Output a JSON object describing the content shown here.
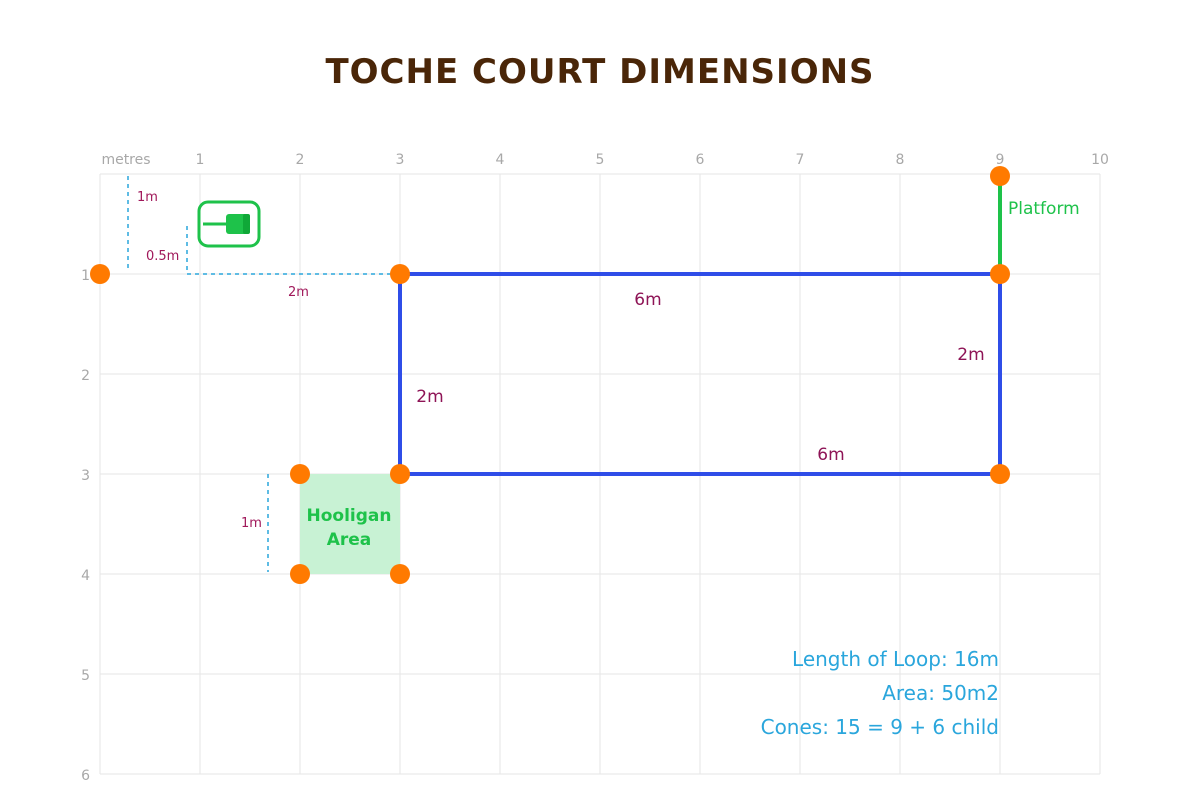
{
  "title": "TOCHE COURT DIMENSIONS",
  "axes": {
    "unit_label": "metres",
    "x_ticks": [
      "1",
      "2",
      "3",
      "4",
      "5",
      "6",
      "7",
      "8",
      "9",
      "10"
    ],
    "y_ticks": [
      "1",
      "2",
      "3",
      "4",
      "5",
      "6"
    ]
  },
  "loop": {
    "color": "#2f4de8",
    "corners_m": [
      [
        3,
        1
      ],
      [
        9,
        1
      ],
      [
        9,
        3
      ],
      [
        3,
        3
      ]
    ],
    "labels": {
      "top": "6m",
      "bottom": "6m",
      "left": "2m",
      "right": "2m"
    }
  },
  "platform": {
    "label": "Platform",
    "color": "#1ec24a",
    "from_m": [
      9,
      0
    ],
    "to_m": [
      9,
      1
    ]
  },
  "hooligan_area": {
    "label_line1": "Hooligan",
    "label_line2": "Area",
    "fill": "#c8f2d4",
    "x_m": [
      2,
      3
    ],
    "y_m": [
      3,
      4
    ]
  },
  "cone_color": "#ff7a00",
  "cones_m": [
    [
      0,
      1
    ],
    [
      3,
      1
    ],
    [
      9,
      0
    ],
    [
      9,
      1
    ],
    [
      9,
      3
    ],
    [
      3,
      3
    ],
    [
      2,
      3
    ],
    [
      2,
      4
    ],
    [
      3,
      4
    ]
  ],
  "guides": {
    "color": "#2aa6dc",
    "label_1m_top": "1m",
    "label_0_5m": "0.5m",
    "label_2m": "2m",
    "label_1m_area": "1m"
  },
  "stats": {
    "length": "Length of Loop:  16m",
    "area": "Area: 50m2",
    "cones": "Cones: 15 = 9 + 6 child"
  }
}
